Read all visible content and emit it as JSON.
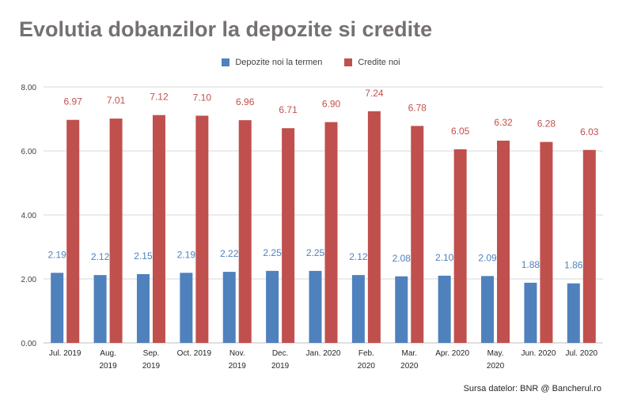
{
  "title": "Evolutia dobanzilor la depozite si credite",
  "source": "Sursa datelor: BNR @ Bancherul.ro",
  "colors": {
    "deposits": "#4f81bd",
    "credits": "#c0504d",
    "grid": "#d9d9d9"
  },
  "chart_data": {
    "type": "bar",
    "categories": [
      [
        "Jul. 2019"
      ],
      [
        "Aug.",
        "2019"
      ],
      [
        "Sep.",
        "2019"
      ],
      [
        "Oct. 2019"
      ],
      [
        "Nov.",
        "2019"
      ],
      [
        "Dec.",
        "2019"
      ],
      [
        "Jan. 2020"
      ],
      [
        "Feb.",
        "2020"
      ],
      [
        "Mar.",
        "2020"
      ],
      [
        "Apr. 2020"
      ],
      [
        "May.",
        "2020"
      ],
      [
        "Jun. 2020"
      ],
      [
        "Jul. 2020"
      ]
    ],
    "series": [
      {
        "name": "Depozite noi la termen",
        "values": [
          2.19,
          2.12,
          2.15,
          2.19,
          2.22,
          2.25,
          2.25,
          2.12,
          2.08,
          2.1,
          2.09,
          1.88,
          1.86
        ],
        "labels": [
          "2.19",
          "2.12",
          "2.15",
          "2.19",
          "2.22",
          "2.25",
          "2.25",
          "2.12",
          "2.08",
          "2.10",
          "2.09",
          "1.88",
          "1.86"
        ]
      },
      {
        "name": "Credite noi",
        "values": [
          6.97,
          7.01,
          7.12,
          7.1,
          6.96,
          6.71,
          6.9,
          7.24,
          6.78,
          6.05,
          6.32,
          6.28,
          6.03
        ],
        "labels": [
          "6.97",
          "7.01",
          "7.12",
          "7.10",
          "6.96",
          "6.71",
          "6.90",
          "7.24",
          "6.78",
          "6.05",
          "6.32",
          "6.28",
          "6.03"
        ]
      }
    ],
    "yticks": [
      "0.00",
      "2.00",
      "4.00",
      "6.00",
      "8.00"
    ],
    "ylim": [
      0,
      8
    ],
    "grid": true,
    "legend_position": "top-center"
  }
}
